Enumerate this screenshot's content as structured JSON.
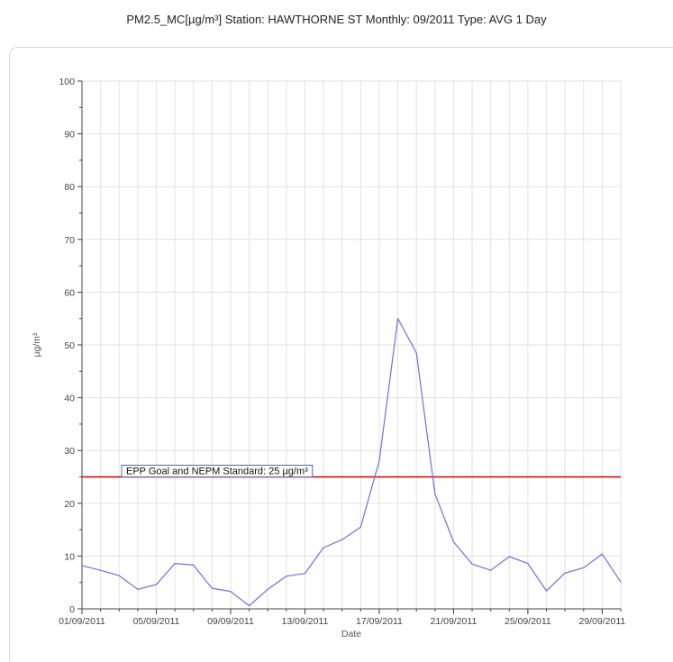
{
  "title": "PM2.5_MC[µg/m³] Station: HAWTHORNE ST  Monthly: 09/2011  Type: AVG 1 Day",
  "chart_data": {
    "type": "line",
    "xlabel": "Date",
    "ylabel": "µg/m³",
    "xlim": [
      "01/09/2011",
      "30/09/2011"
    ],
    "ylim": [
      0,
      100
    ],
    "yticks": [
      0,
      10,
      20,
      30,
      40,
      50,
      60,
      70,
      80,
      90,
      100
    ],
    "x_tick_labels": [
      "01/09/2011",
      "05/09/2011",
      "09/09/2011",
      "13/09/2011",
      "17/09/2011",
      "21/09/2011",
      "25/09/2011",
      "29/09/2011"
    ],
    "grid": true,
    "series": [
      {
        "color": "#7070e0",
        "x": [
          "01/09/2011",
          "02/09/2011",
          "03/09/2011",
          "04/09/2011",
          "05/09/2011",
          "06/09/2011",
          "07/09/2011",
          "08/09/2011",
          "09/09/2011",
          "10/09/2011",
          "11/09/2011",
          "12/09/2011",
          "13/09/2011",
          "14/09/2011",
          "15/09/2011",
          "16/09/2011",
          "17/09/2011",
          "18/09/2011",
          "19/09/2011",
          "20/09/2011",
          "21/09/2011",
          "22/09/2011",
          "23/09/2011",
          "24/09/2011",
          "25/09/2011",
          "26/09/2011",
          "27/09/2011",
          "28/09/2011",
          "29/09/2011",
          "30/09/2011"
        ],
        "values": [
          8.2,
          7.3,
          6.3,
          3.7,
          4.6,
          8.6,
          8.3,
          3.9,
          3.3,
          0.6,
          3.7,
          6.2,
          6.7,
          11.6,
          13.1,
          15.5,
          28.0,
          55.0,
          48.5,
          21.8,
          12.7,
          8.5,
          7.3,
          9.9,
          8.6,
          3.4,
          6.8,
          7.8,
          10.4,
          5.1
        ]
      }
    ],
    "reference_line": {
      "value": 25,
      "color": "#cc0000",
      "label": "EPP Goal and NEPM Standard: 25 µg/m³"
    }
  }
}
